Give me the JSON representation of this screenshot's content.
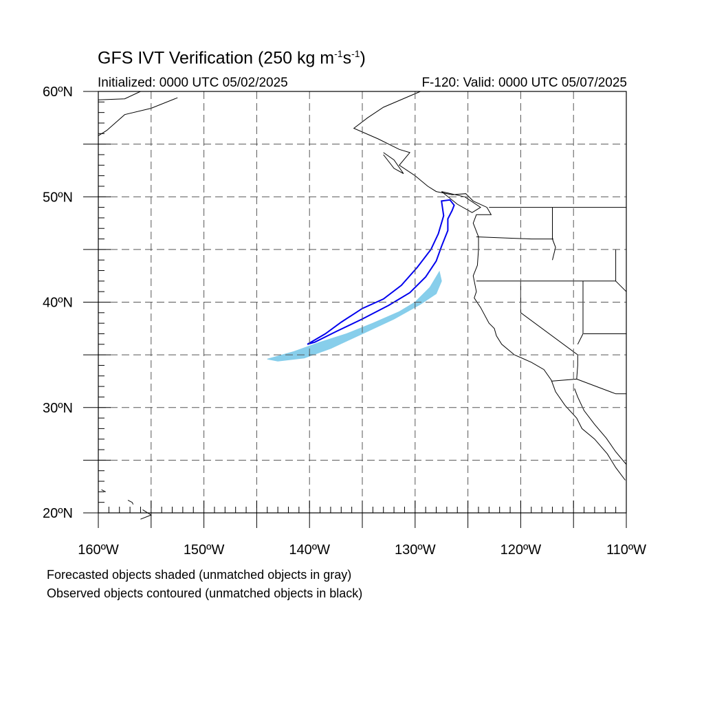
{
  "title": {
    "main": "GFS IVT Verification (250 kg m",
    "exp1": "-1",
    "mid": "s",
    "exp2": "-1",
    "end": ")"
  },
  "subtitle": {
    "initialized": "Initialized: 0000 UTC 05/02/2025",
    "valid": "F-120: Valid: 0000 UTC 05/07/2025"
  },
  "axes": {
    "lat_labels": [
      "60ºN",
      "50ºN",
      "40ºN",
      "30ºN",
      "20ºN"
    ],
    "lon_labels": [
      "160ºW",
      "150ºW",
      "140ºW",
      "130ºW",
      "120ºW",
      "110ºW"
    ],
    "lat_range": [
      20,
      60
    ],
    "lon_range": [
      -160,
      -110
    ],
    "grid": "dashed every 5 degrees"
  },
  "legend": {
    "line1": "Forecasted objects shaded (unmatched objects in gray)",
    "line2": "Observed objects contoured (unmatched objects in black)"
  },
  "colors": {
    "forecast_fill": "#87ceeb",
    "observed_contour": "#0000ee",
    "coastline": "#000000",
    "grid": "#555555"
  },
  "objects": {
    "forecast_object": {
      "matched": true,
      "outline": [
        [
          -144.0,
          34.6
        ],
        [
          -141.5,
          35.3
        ],
        [
          -139.0,
          36.2
        ],
        [
          -136.5,
          37.0
        ],
        [
          -134.0,
          38.0
        ],
        [
          -131.5,
          39.1
        ],
        [
          -130.0,
          40.0
        ],
        [
          -128.6,
          41.4
        ],
        [
          -127.7,
          42.9
        ],
        [
          -127.5,
          42.0
        ],
        [
          -128.0,
          40.8
        ],
        [
          -129.5,
          39.8
        ],
        [
          -132.0,
          38.4
        ],
        [
          -135.0,
          37.0
        ],
        [
          -138.0,
          35.6
        ],
        [
          -140.5,
          34.7
        ],
        [
          -143.0,
          34.4
        ]
      ]
    },
    "observed_object": {
      "matched": true,
      "outline": [
        [
          -140.2,
          36.0
        ],
        [
          -138.5,
          37.0
        ],
        [
          -137.0,
          38.1
        ],
        [
          -135.0,
          39.4
        ],
        [
          -133.0,
          40.3
        ],
        [
          -131.3,
          41.6
        ],
        [
          -129.8,
          43.3
        ],
        [
          -128.5,
          45.0
        ],
        [
          -127.8,
          46.5
        ],
        [
          -127.3,
          48.2
        ],
        [
          -127.5,
          49.6
        ],
        [
          -126.7,
          49.7
        ],
        [
          -126.3,
          49.2
        ],
        [
          -126.5,
          48.7
        ],
        [
          -126.9,
          47.9
        ],
        [
          -126.9,
          46.8
        ],
        [
          -127.5,
          45.3
        ],
        [
          -128.0,
          43.9
        ],
        [
          -129.0,
          42.4
        ],
        [
          -130.5,
          40.9
        ],
        [
          -132.5,
          39.7
        ],
        [
          -135.0,
          38.4
        ],
        [
          -137.5,
          37.2
        ],
        [
          -139.5,
          36.2
        ]
      ]
    }
  }
}
